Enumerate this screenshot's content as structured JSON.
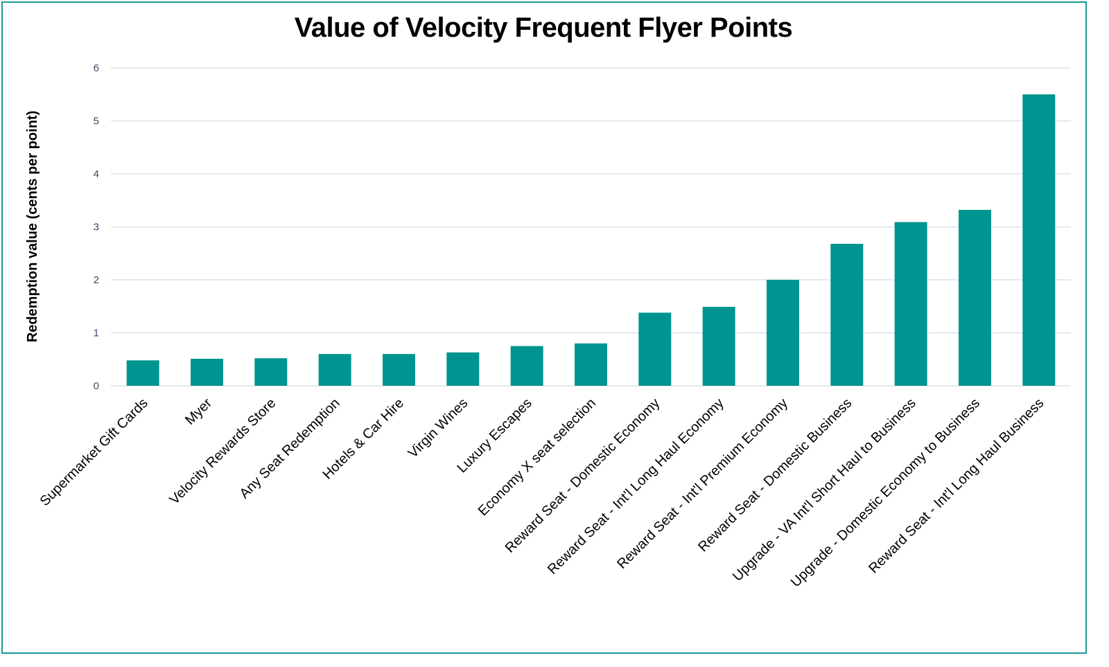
{
  "chart_data": {
    "type": "bar",
    "title": "Value of Velocity Frequent Flyer Points",
    "xlabel": "",
    "ylabel": "Redemption value (cents per point)",
    "ylim": [
      0,
      6
    ],
    "yticks": [
      0,
      1,
      2,
      3,
      4,
      5,
      6
    ],
    "grid": true,
    "bar_color": "#009490",
    "categories": [
      "Supermarket Gift Cards",
      "Myer",
      "Velocity Rewards Store",
      "Any Seat Redemption",
      "Hotels & Car Hire",
      "Virgin Wines",
      "Luxury Escapes",
      "Economy X seat selection",
      "Reward Seat - Domestic Economy",
      "Reward Seat - Int'l Long Haul Economy",
      "Reward Seat - Int'l Premium Economy",
      "Reward Seat - Domestic Business",
      "Upgrade - VA Int'l Short Haul to Business",
      "Upgrade - Domestic Economy to Business",
      "Reward Seat - Int'l Long Haul Business"
    ],
    "values": [
      0.48,
      0.51,
      0.52,
      0.6,
      0.6,
      0.63,
      0.75,
      0.8,
      1.38,
      1.49,
      2.0,
      2.68,
      3.09,
      3.32,
      5.5
    ]
  }
}
